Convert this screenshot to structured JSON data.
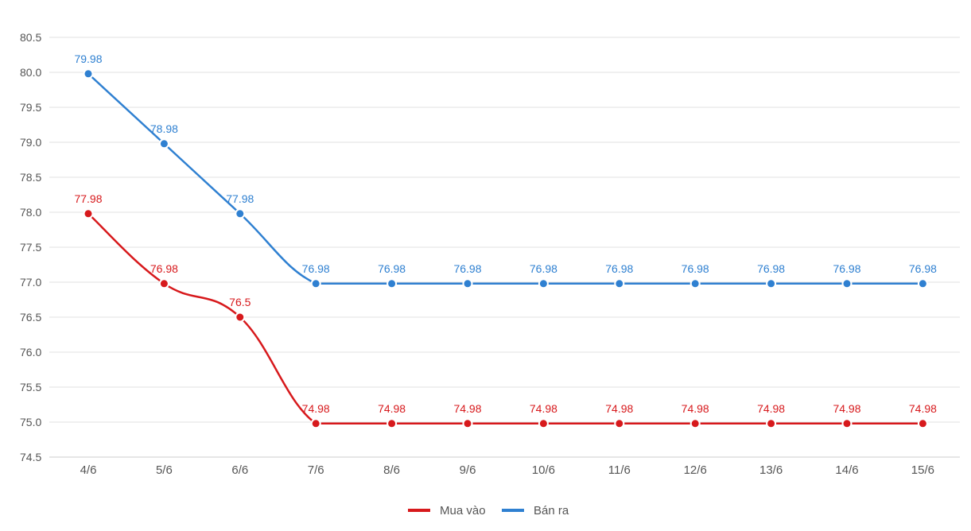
{
  "chart_data": {
    "type": "line",
    "categories": [
      "4/6",
      "5/6",
      "6/6",
      "7/6",
      "8/6",
      "9/6",
      "10/6",
      "11/6",
      "12/6",
      "13/6",
      "14/6",
      "15/6"
    ],
    "series": [
      {
        "name": "Mua vào",
        "color": "#d7191c",
        "values": [
          77.98,
          76.98,
          76.5,
          74.98,
          74.98,
          74.98,
          74.98,
          74.98,
          74.98,
          74.98,
          74.98,
          74.98
        ],
        "labels": [
          "77.98",
          "76.98",
          "76.5",
          "74.98",
          "74.98",
          "74.98",
          "74.98",
          "74.98",
          "74.98",
          "74.98",
          "74.98",
          "74.98"
        ]
      },
      {
        "name": "Bán ra",
        "color": "#2f80d1",
        "values": [
          79.98,
          78.98,
          77.98,
          76.98,
          76.98,
          76.98,
          76.98,
          76.98,
          76.98,
          76.98,
          76.98,
          76.98
        ],
        "labels": [
          "79.98",
          "78.98",
          "77.98",
          "76.98",
          "76.98",
          "76.98",
          "76.98",
          "76.98",
          "76.98",
          "76.98",
          "76.98",
          "76.98"
        ]
      }
    ],
    "yticks": [
      "74.5",
      "75.0",
      "75.5",
      "76.0",
      "76.5",
      "77.0",
      "77.5",
      "78.0",
      "78.5",
      "79.0",
      "79.5",
      "80.0",
      "80.5"
    ],
    "ylim": [
      74.5,
      80.5
    ],
    "grid": true,
    "legend_position": "bottom-center",
    "title": "",
    "xlabel": "",
    "ylabel": ""
  }
}
